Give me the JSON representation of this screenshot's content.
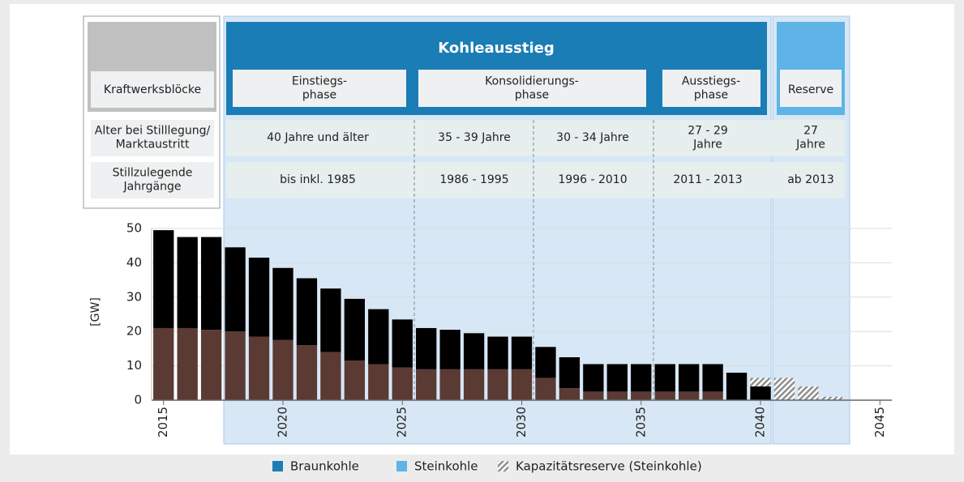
{
  "phase_table": {
    "row_header": "Kraftwerksblöcke",
    "title": "Kohleausstieg",
    "phases": [
      [
        "Einstiegs-",
        "phase"
      ],
      [
        "Konsolidierungs-",
        "phase"
      ],
      [
        "Ausstiegs-",
        "phase"
      ]
    ],
    "reserve": "Reserve",
    "rows": [
      {
        "label": [
          "Alter bei Stilllegung/",
          "Marktaustritt"
        ],
        "cells": [
          [
            "40 Jahre und älter"
          ],
          [
            "35 - 39 Jahre"
          ],
          [
            "30 - 34 Jahre"
          ],
          [
            "27 - 29",
            "Jahre"
          ],
          [
            "27",
            "Jahre"
          ]
        ]
      },
      {
        "label": [
          "Stillzulegende",
          "Jahrgänge"
        ],
        "cells": [
          [
            "bis inkl. 1985"
          ],
          [
            "1986 - 1995"
          ],
          [
            "1996 - 2010"
          ],
          [
            "2011 - 2013"
          ],
          [
            "ab 2013"
          ]
        ]
      }
    ]
  },
  "chart_data": {
    "type": "stacked_bar",
    "y_label": "[GW]",
    "x": [
      2015,
      2016,
      2017,
      2018,
      2019,
      2020,
      2021,
      2022,
      2023,
      2024,
      2025,
      2026,
      2027,
      2028,
      2029,
      2030,
      2031,
      2032,
      2033,
      2034,
      2035,
      2036,
      2037,
      2038,
      2039,
      2040,
      2041,
      2042,
      2043
    ],
    "series": [
      {
        "color": "#5a3a33",
        "values": [
          21,
          21,
          20.5,
          20,
          18.5,
          17.5,
          16,
          14,
          11.5,
          10.5,
          9.5,
          9,
          9,
          9,
          9,
          9,
          6.5,
          3.5,
          2.5,
          2.5,
          2.5,
          2.5,
          2.5,
          2.5,
          0,
          0,
          null,
          null,
          null
        ]
      },
      {
        "color": "#000000",
        "values": [
          28.5,
          26.5,
          27,
          24.5,
          23,
          21,
          19.5,
          18.5,
          18,
          16,
          14,
          12,
          11.5,
          10.5,
          9.5,
          9.5,
          9,
          9,
          8,
          8,
          8,
          8,
          8,
          8,
          8,
          4,
          null,
          null,
          null
        ]
      },
      {
        "color": "hatch",
        "values": [
          null,
          null,
          null,
          null,
          null,
          null,
          null,
          null,
          null,
          null,
          null,
          null,
          null,
          null,
          null,
          null,
          null,
          null,
          null,
          null,
          null,
          null,
          null,
          null,
          null,
          2.5,
          6.5,
          4,
          1
        ]
      }
    ],
    "xlim": [
      2014.5,
      2045.5
    ],
    "xticks": [
      2015,
      2020,
      2025,
      2030,
      2035,
      2040,
      2045
    ],
    "ylim": [
      0,
      50
    ],
    "yticks": [
      0,
      10,
      20,
      30,
      40,
      50
    ],
    "grid": true,
    "legend": [
      {
        "name": "Braunkohle",
        "color": "#1a7db5"
      },
      {
        "name": "Steinkohle",
        "color": "#5eb4e6"
      },
      {
        "name": "Kapazitätsreserve (Steinkohle)",
        "color": "hatch"
      }
    ]
  }
}
